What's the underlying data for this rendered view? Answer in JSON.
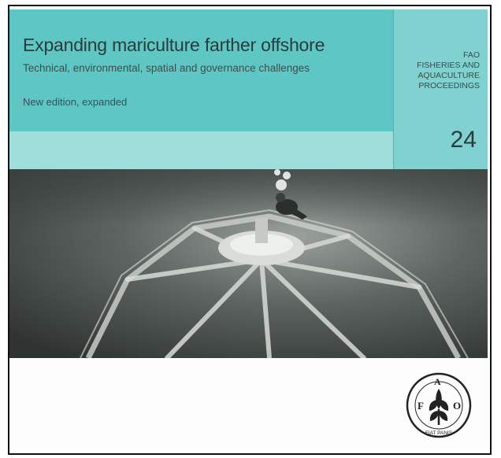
{
  "cover": {
    "title": "Expanding mariculture farther offshore",
    "subtitle": "Technical, environmental, spatial and governance challenges",
    "edition": "New edition, expanded",
    "series_line1": "FAO",
    "series_line2": "FISHERIES AND",
    "series_line3": "AQUACULTURE",
    "series_line4": "PROCEEDINGS",
    "number": "24",
    "logo_letters": [
      "F",
      "A",
      "O"
    ],
    "logo_motto": "FIAT PANIS"
  },
  "colors": {
    "band": "#5ec7c3",
    "band_light": "#9fdedb",
    "photo_tone": "#4a4f4d"
  }
}
